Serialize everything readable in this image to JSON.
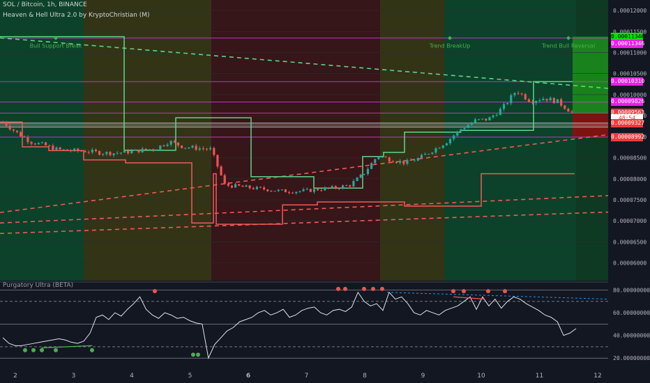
{
  "header": {
    "symbol_line": "SOL / Bitcoin, 1h, BINANCE",
    "indicator_line": "Heaven & Hell Ultra 2.0 by KryptoChristian (M)",
    "sub_title": "Purgatory Ultra (BETA)"
  },
  "colors": {
    "background": "#131722",
    "candle_up": "#26a69a",
    "candle_down": "#ef5350",
    "heaven_line": "#5fd38d",
    "hell_line": "#f05a5a",
    "magenta": "#c43fcf",
    "green_zone": "#0c4a2a",
    "yellow_zone": "#3a3a14",
    "red_zone": "#3d1616"
  },
  "chart_data": {
    "type": "candlestick",
    "main": {
      "y_ticks": [
        "0.00012000",
        "0.00011500",
        "0.00011000",
        "0.00010500",
        "0.00010000",
        "0.00009500",
        "0.00009000",
        "0.00008500",
        "0.00008000",
        "0.00007500",
        "0.00007000",
        "0.00006500",
        "0.00006000"
      ],
      "ylim": [
        5.58e-05,
        0.0001225
      ],
      "x_ticks": [
        "2",
        "3",
        "4",
        "5",
        "6",
        "7",
        "8",
        "9",
        "10",
        "11",
        "12"
      ],
      "zones": [
        {
          "from": 0.0,
          "to": 1.18,
          "color": "green"
        },
        {
          "from": 1.18,
          "to": 3.1,
          "color": "yellow"
        },
        {
          "from": 3.1,
          "to": 5.47,
          "color": "red"
        },
        {
          "from": 5.47,
          "to": 6.4,
          "color": "yellow"
        },
        {
          "from": 6.4,
          "to": 7.92,
          "color": "green"
        },
        {
          "from": 7.92,
          "to": 8.42,
          "color": "bright-green"
        }
      ],
      "horizontal_levels": [
        0.00011346,
        0.0001031,
        9.826e-05,
        9.563e-05,
        9.327e-05,
        9.228e-05,
        8.992e-05
      ],
      "price_tags": [
        {
          "text": "0.00011346",
          "bg": "#00e600",
          "fg": "#000000",
          "price": 0.0001138
        },
        {
          "text": "0.00011346",
          "bg": "#e91ee9",
          "fg": "#ffffff",
          "price": 0.000112
        },
        {
          "text": "0.00010310",
          "bg": "#e91ee9",
          "fg": "#ffffff",
          "price": 0.0001031
        },
        {
          "text": "0.00009826",
          "bg": "#e91ee9",
          "fg": "#ffffff",
          "price": 9.826e-05
        },
        {
          "text": "0.00009563",
          "bg": "#ef3b3b",
          "fg": "#ffffff",
          "price": 9.563e-05
        },
        {
          "text": "48:54",
          "bg": "#ffffff",
          "fg": "#ef3b3b",
          "price": 9.44e-05
        },
        {
          "text": "0.00009327",
          "bg": "#ef3b3b",
          "fg": "#ffffff",
          "price": 9.327e-05
        },
        {
          "text": "0.00008992",
          "bg": "#ef3b3b",
          "fg": "#ffffff",
          "price": 8.99e-05
        }
      ],
      "annotations": [
        {
          "text": "Bull Support Break",
          "x": 0.7,
          "price": 0.00011346
        },
        {
          "text": "Trend BreakUp",
          "x": 6.5,
          "price": 0.00011346
        },
        {
          "text": "Trend Bull Reversal",
          "x": 7.85,
          "price": 0.00011346
        }
      ],
      "close_series": [
        9.35e-05,
        9.1e-05,
        8.88e-05,
        8.8e-05,
        8.69e-05,
        8.67e-05,
        8.66e-05,
        8.62e-05,
        8.61e-05,
        8.64e-05,
        8.68e-05,
        8.72e-05,
        8.89e-05,
        8.76e-05,
        8.73e-05,
        8.7e-05,
        7.85e-05,
        7.82e-05,
        7.78e-05,
        7.75e-05,
        7.71e-05,
        7.7e-05,
        7.72e-05,
        7.76e-05,
        7.79e-05,
        7.85e-05,
        8.12e-05,
        8.55e-05,
        8.45e-05,
        8.38e-05,
        8.49e-05,
        8.68e-05,
        8.89e-05,
        9.18e-05,
        9.38e-05,
        9.42e-05,
        9.68e-05,
        0.000101,
        9.85e-05,
        9.92e-05,
        9.83e-05,
        9.58e-05
      ]
    },
    "oscillator": {
      "name": "Purgatory Ultra (BETA)",
      "y_ticks": [
        "80.00000000",
        "60.00000000",
        "40.00000000",
        "20.00000000"
      ],
      "ylim": [
        14,
        84
      ],
      "levels": [
        80,
        70,
        50,
        30,
        20
      ],
      "values": [
        38,
        33,
        31,
        31,
        32,
        33,
        34,
        35,
        36,
        37,
        36,
        34,
        33,
        35,
        42,
        56,
        58,
        54,
        60,
        57,
        63,
        68,
        74,
        63,
        58,
        55,
        60,
        58,
        55,
        56,
        53,
        51,
        50,
        20,
        32,
        38,
        44,
        47,
        52,
        54,
        56,
        60,
        62,
        58,
        60,
        63,
        56,
        58,
        62,
        64,
        65,
        60,
        58,
        62,
        63,
        61,
        65,
        78,
        70,
        66,
        68,
        62,
        78,
        72,
        74,
        68,
        60,
        58,
        62,
        60,
        58,
        62,
        64,
        66,
        70,
        74,
        63,
        74,
        66,
        72,
        64,
        70,
        74,
        72,
        68,
        65,
        62,
        58,
        56,
        52,
        40,
        42,
        46
      ]
    }
  }
}
